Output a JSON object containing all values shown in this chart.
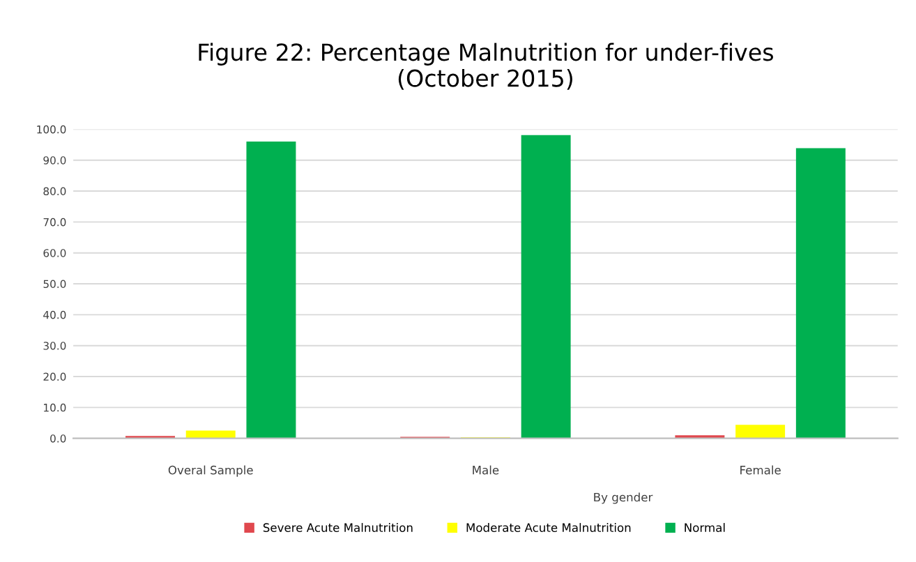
{
  "chart_data": {
    "type": "bar",
    "title": "Figure 22: Percentage Malnutrition for under-fives\n(October 2015)",
    "categories": [
      "Overal Sample",
      "Male",
      "Female"
    ],
    "series": [
      {
        "name": "Severe Acute Malnutrition",
        "color": "#e0484e",
        "values": [
          0.8,
          0.5,
          1.0
        ]
      },
      {
        "name": "Moderate Acute Malnutrition",
        "color": "#ffff00",
        "values": [
          2.5,
          0.3,
          4.4
        ]
      },
      {
        "name": "Normal",
        "color": "#00b050",
        "values": [
          96.0,
          98.1,
          93.9
        ]
      }
    ],
    "annotations": [
      "By gender"
    ],
    "ylim": [
      0,
      100
    ],
    "yticks": [
      {
        "value": 0,
        "label": "0.0"
      },
      {
        "value": 10,
        "label": "10.0"
      },
      {
        "value": 20,
        "label": "20.0"
      },
      {
        "value": 30,
        "label": "30.0"
      },
      {
        "value": 40,
        "label": "40.0"
      },
      {
        "value": 50,
        "label": "50.0"
      },
      {
        "value": 60,
        "label": "60.0"
      },
      {
        "value": 70,
        "label": "70.0"
      },
      {
        "value": 80,
        "label": "80.0"
      },
      {
        "value": 90,
        "label": "90.0"
      },
      {
        "value": 100,
        "label": "100.0"
      }
    ],
    "grid": "y",
    "legend": "bottom"
  }
}
